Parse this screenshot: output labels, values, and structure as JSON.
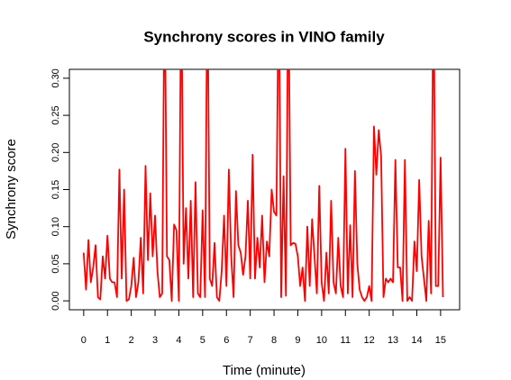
{
  "chart_data": {
    "type": "line",
    "title": "Synchrony scores in VINO family",
    "x_label": "Time (minute)",
    "y_label": "Synchrony score",
    "x": [
      0,
      0.1,
      0.2,
      0.3,
      0.4,
      0.5,
      0.6,
      0.7,
      0.8,
      0.9,
      1,
      1.1,
      1.2,
      1.3,
      1.4,
      1.5,
      1.6,
      1.7,
      1.8,
      1.9,
      2,
      2.1,
      2.2,
      2.3,
      2.4,
      2.5,
      2.6,
      2.7,
      2.8,
      2.9,
      3,
      3.1,
      3.2,
      3.3,
      3.4,
      3.5,
      3.6,
      3.7,
      3.8,
      3.9,
      4,
      4.1,
      4.2,
      4.3,
      4.4,
      4.5,
      4.6,
      4.7,
      4.8,
      4.9,
      5,
      5.1,
      5.2,
      5.3,
      5.4,
      5.5,
      5.6,
      5.7,
      5.8,
      5.9,
      6,
      6.1,
      6.2,
      6.3,
      6.4,
      6.5,
      6.6,
      6.7,
      6.8,
      6.9,
      7,
      7.1,
      7.2,
      7.3,
      7.4,
      7.5,
      7.6,
      7.7,
      7.8,
      7.9,
      8,
      8.1,
      8.2,
      8.3,
      8.4,
      8.5,
      8.6,
      8.7,
      8.8,
      8.9,
      9,
      9.1,
      9.2,
      9.3,
      9.4,
      9.5,
      9.6,
      9.7,
      9.8,
      9.9,
      10,
      10.1,
      10.2,
      10.3,
      10.4,
      10.5,
      10.6,
      10.7,
      10.8,
      10.9,
      11,
      11.1,
      11.2,
      11.3,
      11.4,
      11.5,
      11.6,
      11.7,
      11.8,
      11.9,
      12,
      12.1,
      12.2,
      12.3,
      12.4,
      12.5,
      12.6,
      12.7,
      12.8,
      12.9,
      13,
      13.1,
      13.2,
      13.3,
      13.4,
      13.5,
      13.6,
      13.7,
      13.8,
      13.9,
      14,
      14.1,
      14.2,
      14.3,
      14.4,
      14.5,
      14.6,
      14.7,
      14.8,
      14.9,
      15,
      15.1
    ],
    "series": [
      {
        "name": "Synchrony score",
        "color": "#ff0000",
        "values": [
          0.065,
          0.015,
          0.082,
          0.025,
          0.045,
          0.075,
          0.005,
          0.002,
          0.06,
          0.03,
          0.088,
          0.03,
          0.025,
          0.025,
          0.005,
          0.177,
          0.03,
          0.15,
          0.0,
          0.002,
          0.02,
          0.058,
          0.005,
          0.025,
          0.085,
          0.01,
          0.182,
          0.055,
          0.145,
          0.06,
          0.115,
          0.04,
          0.005,
          0.01,
          0.45,
          0.06,
          0.055,
          0.0,
          0.103,
          0.095,
          0.0,
          0.45,
          0.05,
          0.125,
          0.03,
          0.135,
          0.005,
          0.16,
          0.01,
          0.005,
          0.122,
          0.005,
          0.45,
          0.03,
          0.02,
          0.078,
          0.005,
          0.0,
          0.04,
          0.115,
          0.02,
          0.177,
          0.06,
          0.005,
          0.148,
          0.075,
          0.065,
          0.035,
          0.06,
          0.135,
          0.03,
          0.197,
          0.03,
          0.085,
          0.045,
          0.115,
          0.025,
          0.08,
          0.06,
          0.15,
          0.12,
          0.115,
          0.45,
          0.005,
          0.168,
          0.007,
          0.45,
          0.075,
          0.078,
          0.077,
          0.06,
          0.02,
          0.045,
          0.0,
          0.1,
          0.02,
          0.11,
          0.06,
          0.01,
          0.155,
          0.025,
          0.0,
          0.065,
          0.01,
          0.135,
          0.025,
          0.01,
          0.085,
          0.02,
          0.005,
          0.205,
          0.01,
          0.102,
          0.005,
          0.175,
          0.05,
          0.015,
          0.005,
          0.0,
          0.005,
          0.02,
          0.0,
          0.235,
          0.17,
          0.23,
          0.195,
          0.005,
          0.03,
          0.025,
          0.03,
          0.025,
          0.19,
          0.045,
          0.045,
          0.0,
          0.19,
          0.0,
          0.005,
          0.0,
          0.08,
          0.04,
          0.163,
          0.06,
          0.03,
          0.0,
          0.108,
          0.01,
          0.45,
          0.02,
          0.02,
          0.193,
          0.005
        ]
      }
    ],
    "xlim": [
      -0.6,
      15.8
    ],
    "ylim": [
      -0.012,
      0.312
    ],
    "xticks": [
      0,
      1,
      2,
      3,
      4,
      5,
      6,
      7,
      8,
      9,
      10,
      11,
      12,
      13,
      14,
      15
    ],
    "yticks": [
      {
        "value": 0,
        "label": "0.00"
      },
      0.05,
      {
        "value": 0.1,
        "label": "0.10"
      },
      0.15,
      {
        "value": 0.2,
        "label": "0.20"
      },
      0.25,
      {
        "value": 0.3,
        "label": "0.30"
      }
    ]
  }
}
